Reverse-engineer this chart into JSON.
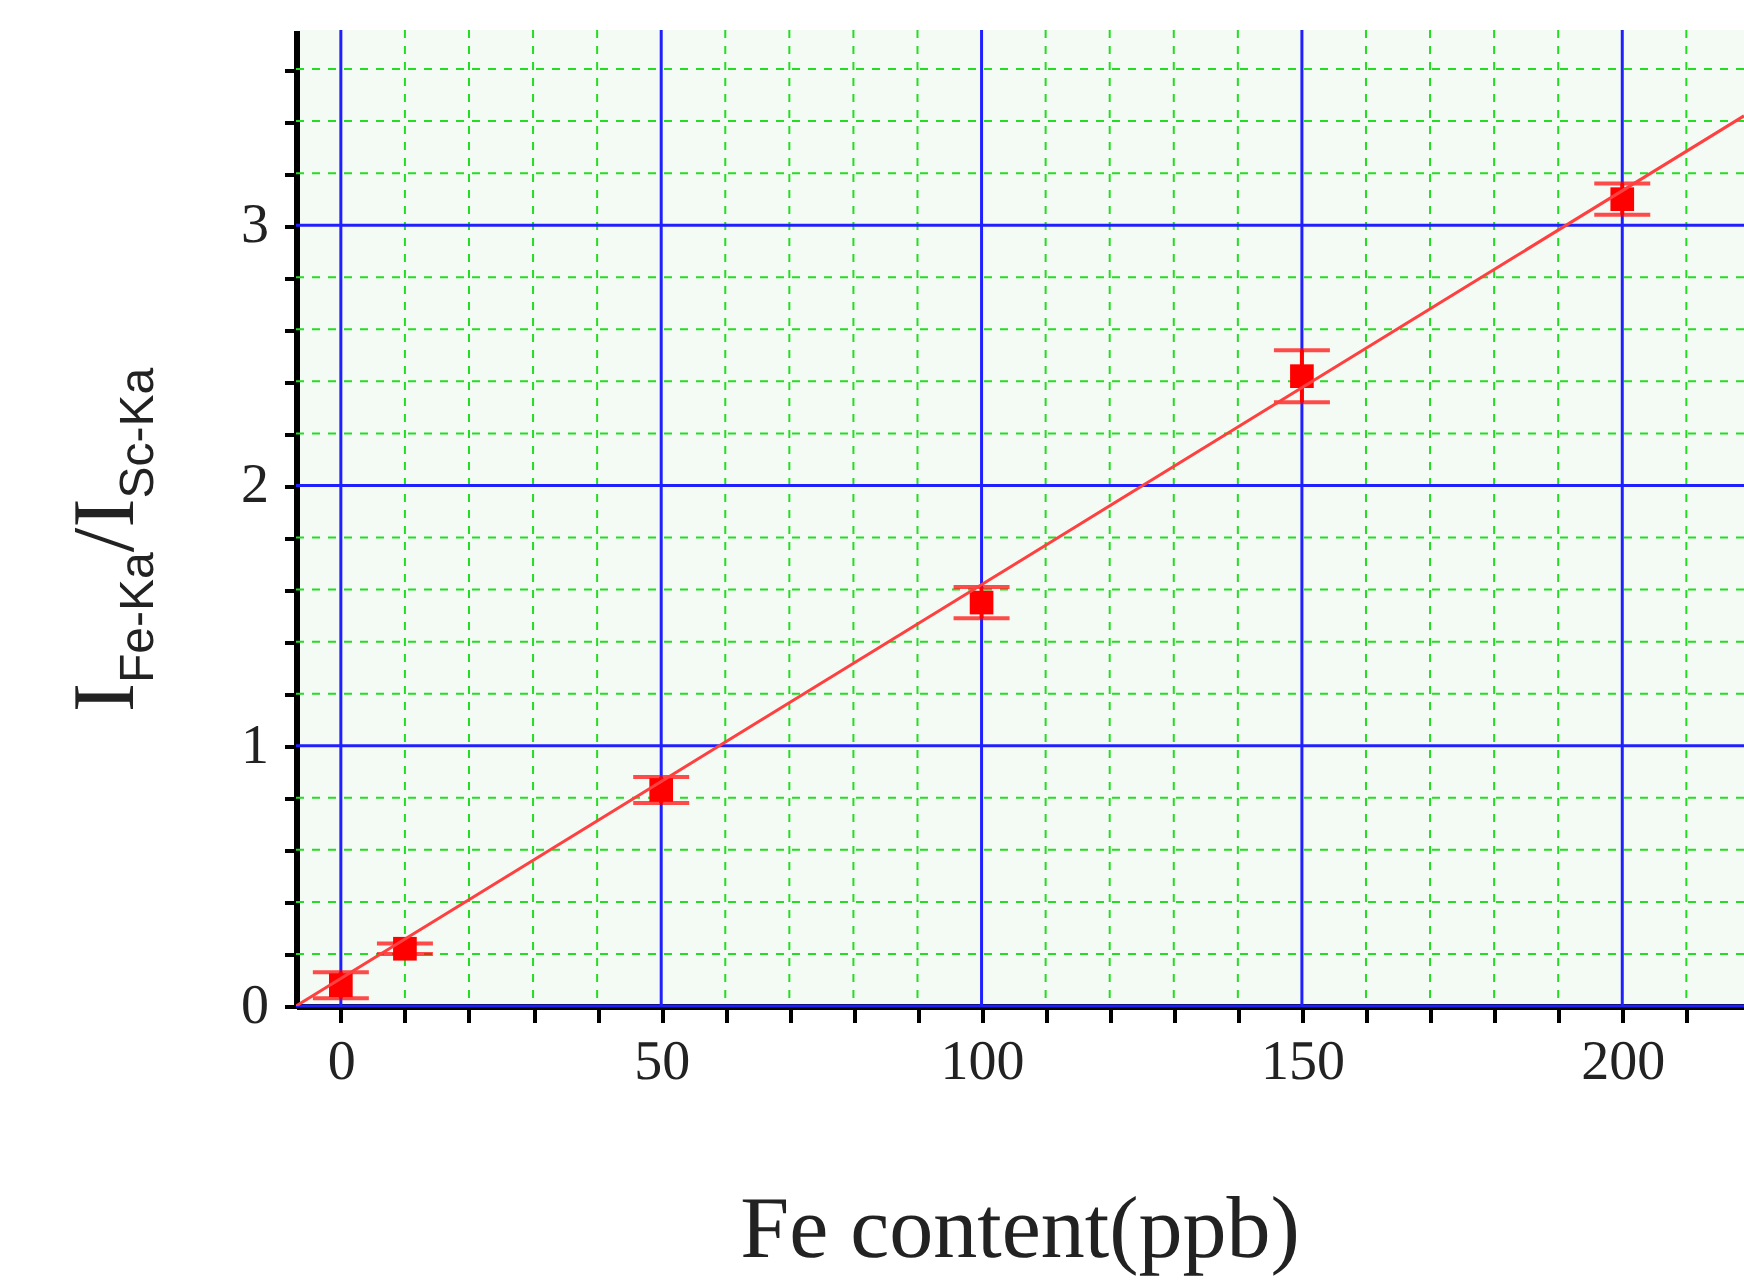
{
  "chart_data": {
    "type": "scatter",
    "xlabel": "Fe content(ppb)",
    "ylabel": "I$_{Fe-Ka}$/I$_{Sc-Ka}$",
    "xlim": [
      -7,
      219
    ],
    "ylim": [
      0,
      3.75
    ],
    "xticks": [
      0,
      {
        "value": 10,
        "label": null
      },
      {
        "value": 20,
        "label": null
      },
      {
        "value": 30,
        "label": null
      },
      {
        "value": 40,
        "label": null
      },
      50,
      {
        "value": 60,
        "label": null
      },
      {
        "value": 70,
        "label": null
      },
      {
        "value": 80,
        "label": null
      },
      {
        "value": 90,
        "label": null
      },
      100,
      {
        "value": 110,
        "label": null
      },
      {
        "value": 120,
        "label": null
      },
      {
        "value": 130,
        "label": null
      },
      {
        "value": 140,
        "label": null
      },
      150,
      {
        "value": 160,
        "label": null
      },
      {
        "value": 170,
        "label": null
      },
      {
        "value": 180,
        "label": null
      },
      {
        "value": 190,
        "label": null
      },
      200,
      {
        "value": 210,
        "label": null
      }
    ],
    "yticks": [
      0,
      {
        "value": 0.2,
        "label": null
      },
      {
        "value": 0.4,
        "label": null
      },
      {
        "value": 0.6,
        "label": null
      },
      {
        "value": 0.8,
        "label": null
      },
      1,
      {
        "value": 1.2,
        "label": null
      },
      {
        "value": 1.4,
        "label": null
      },
      {
        "value": 1.6,
        "label": null
      },
      {
        "value": 1.8,
        "label": null
      },
      2,
      {
        "value": 2.2,
        "label": null
      },
      {
        "value": 2.4,
        "label": null
      },
      {
        "value": 2.6,
        "label": null
      },
      {
        "value": 2.8,
        "label": null
      },
      3,
      {
        "value": 3.2,
        "label": null
      },
      {
        "value": 3.4,
        "label": null
      },
      {
        "value": 3.6,
        "label": null
      }
    ],
    "grid": true,
    "marker": "square",
    "series": [
      {
        "type": "scatter",
        "color": "#ff0000",
        "x": [
          0,
          10,
          50,
          100,
          150,
          200
        ],
        "values": [
          0.08,
          0.22,
          0.83,
          1.55,
          2.42,
          3.1
        ],
        "errors": [
          0.05,
          0.02,
          0.05,
          0.06,
          0.1,
          0.06
        ]
      },
      {
        "type": "line",
        "marker": "none",
        "color": "#ff4040",
        "x": [
          -7,
          219
        ],
        "values": [
          0,
          3.42
        ]
      }
    ]
  }
}
